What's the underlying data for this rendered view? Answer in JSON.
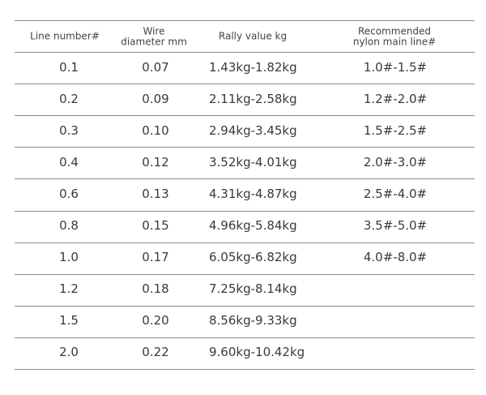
{
  "table": {
    "header": [
      "Line number#",
      "Wire\ndiameter mm",
      "Rally value kg",
      "Recommended\nnylon main line#"
    ],
    "rows": [
      [
        "0.1",
        "0.07",
        "1.43kg-1.82kg",
        "1.0#-1.5#"
      ],
      [
        "0.2",
        "0.09",
        "2.11kg-2.58kg",
        "1.2#-2.0#"
      ],
      [
        "0.3",
        "0.10",
        "2.94kg-3.45kg",
        "1.5#-2.5#"
      ],
      [
        "0.4",
        "0.12",
        "3.52kg-4.01kg",
        "2.0#-3.0#"
      ],
      [
        "0.6",
        "0.13",
        "4.31kg-4.87kg",
        "2.5#-4.0#"
      ],
      [
        "0.8",
        "0.15",
        "4.96kg-5.84kg",
        "3.5#-5.0#"
      ],
      [
        "1.0",
        "0.17",
        "6.05kg-6.82kg",
        "4.0#-8.0#"
      ],
      [
        "1.2",
        "0.18",
        "7.25kg-8.14kg"
      ],
      [
        "1.5",
        "0.20",
        "8.56kg-9.33kg"
      ],
      [
        "2.0",
        "0.22",
        "9.60kg-10.42kg"
      ]
    ]
  }
}
